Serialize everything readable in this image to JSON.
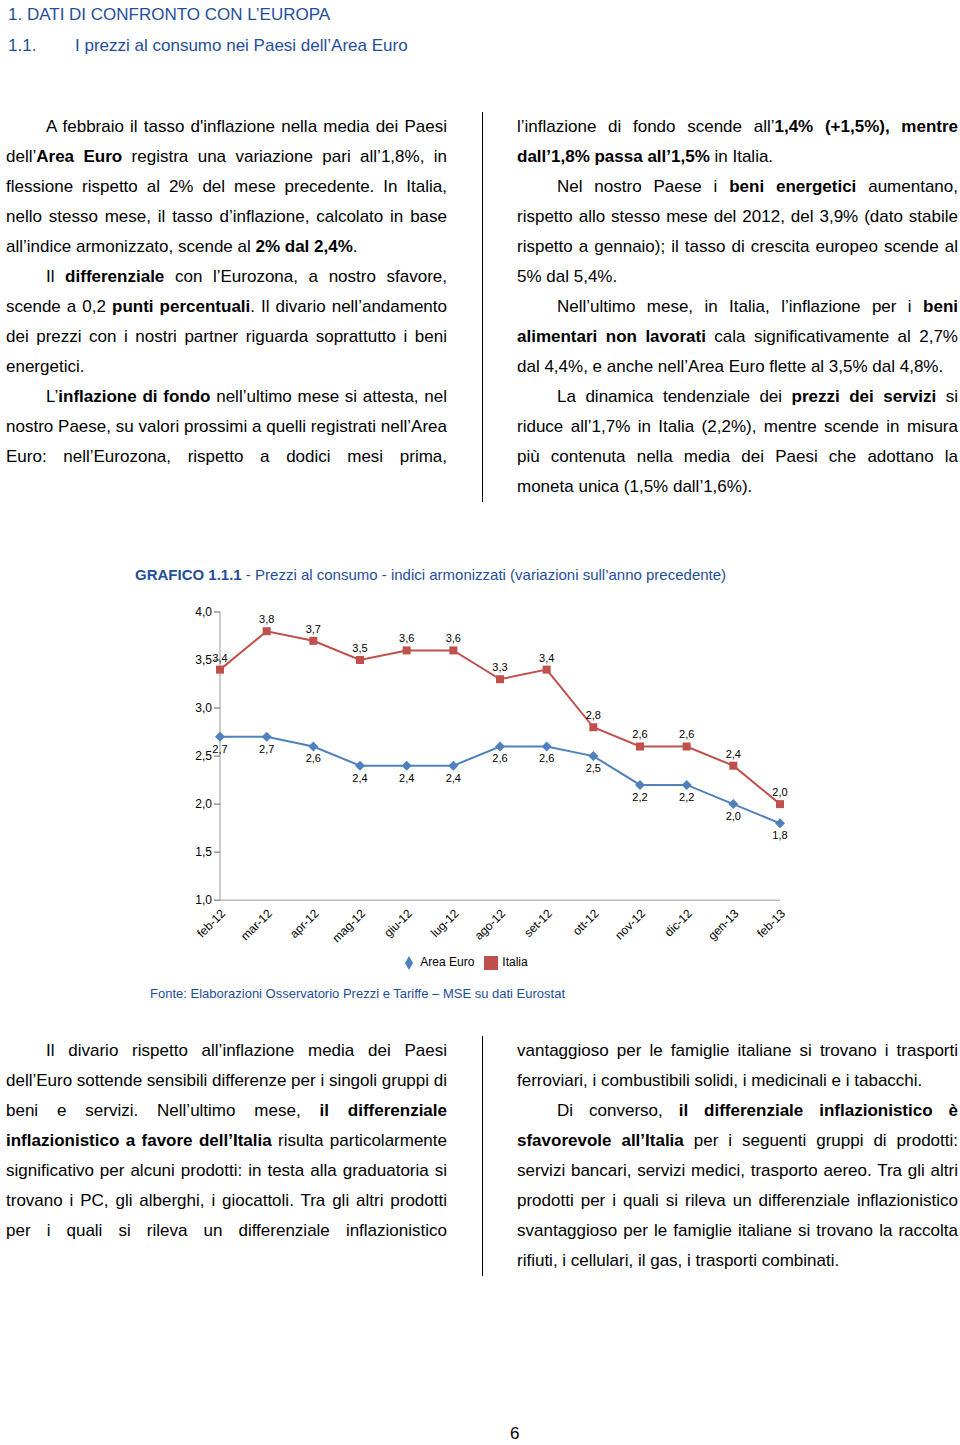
{
  "document": {
    "header": {
      "section": "1. DATI DI CONFRONTO CON L’EUROPA",
      "number": "1.1.",
      "title": "I prezzi al consumo nei Paesi dell’Area Euro"
    },
    "top_paragraphs": [
      [
        "A febbraio il tasso d'inflazione nella media dei Paesi dell’",
        {
          "bold": "Area Euro"
        },
        " registra una variazione pari all’1,8%, in flessione rispetto al 2% del mese precedente. In Italia, nello stesso mese, il tasso d’inflazione, calcolato in base all’indice armonizzato, scende al ",
        {
          "bold": "2% dal 2,4%"
        },
        "."
      ],
      [
        "Il ",
        {
          "bold": "differenziale"
        },
        " con l’Eurozona, a nostro sfavore, scende a 0,2 ",
        {
          "bold": "punti percentuali"
        },
        ". Il divario nell’andamento dei prezzi con i nostri partner riguarda soprattutto i beni energetici."
      ],
      [
        "L’",
        {
          "bold": "inflazione di fondo"
        },
        " nell’ultimo mese si attesta, nel nostro Paese, su valori prossimi a quelli registrati nell’Area Euro: nell’Eurozona, rispetto a dodici mesi prima, l’inflazione di fondo scende all’",
        {
          "bold": "1,4% (+1,5%), mentre dall’1,8% passa all’1,5%"
        },
        " in Italia."
      ],
      [
        "Nel nostro Paese i ",
        {
          "bold": "beni energetici"
        },
        " aumentano, rispetto allo stesso mese del 2012, del 3,9% (dato stabile rispetto a gennaio); il tasso di crescita europeo scende al 5% dal 5,4%."
      ],
      [
        "Nell’ultimo mese, in Italia, l’inflazione per i ",
        {
          "bold": "beni alimentari non lavorati"
        },
        " cala significativamente al 2,7% dal 4,4%, e anche nell’Area Euro flette al 3,5% dal 4,8%."
      ],
      [
        "La dinamica tendenziale dei ",
        {
          "bold": "prezzi dei servizi"
        },
        " si riduce all’1,7% in Italia (2,2%), mentre scende in misura più contenuta nella media dei Paesi che adottano la moneta unica (1,5% dall’1,6%)."
      ]
    ],
    "source": "Fonte: Elaborazioni Osservatorio Prezzi e Tariffe – MSE su dati Eurostat",
    "bottom_paragraphs": [
      [
        "Il divario rispetto all’inflazione media dei Paesi dell’Euro sottende sensibili differenze per i singoli gruppi di beni e servizi. Nell’ultimo mese, ",
        {
          "bold": "il differenziale inflazionistico a favore dell’Italia"
        },
        " risulta particolarmente significativo per alcuni prodotti: in testa alla graduatoria si trovano i PC, gli alberghi, i giocattoli. Tra gli altri prodotti per i quali si rileva un differenziale inflazionistico vantaggioso per le famiglie italiane si trovano i trasporti ferroviari, i combustibili solidi, i medicinali e i tabacchi."
      ],
      [
        "Di converso, ",
        {
          "bold": "il differenziale inflazionistico è sfavorevole all’Italia"
        },
        " per i seguenti gruppi di prodotti: servizi bancari, servizi medici, trasporto aereo. Tra gli altri prodotti per i quali si rileva un differenziale inflazionistico svantaggioso per le famiglie italiane si trovano la raccolta rifiuti, i cellulari, il gas, i trasporti combinati."
      ]
    ],
    "page_number": "6"
  },
  "chart_data": {
    "type": "line",
    "title": "GRAFICO 1.1.1 - Prezzi al consumo - indici armonizzati (variazioni sull’anno precedente)",
    "categories": [
      "feb-12",
      "mar-12",
      "apr-12",
      "mag-12",
      "giu-12",
      "lug-12",
      "ago-12",
      "set-12",
      "ott-12",
      "nov-12",
      "dic-12",
      "gen-13",
      "feb-13"
    ],
    "series": [
      {
        "name": "Area Euro",
        "color": "#4f81bd",
        "marker": "diamond",
        "values": [
          2.7,
          2.7,
          2.6,
          2.4,
          2.4,
          2.4,
          2.6,
          2.6,
          2.5,
          2.2,
          2.2,
          2.0,
          1.8
        ],
        "value_labels": [
          "2,7",
          "2,7",
          "2,6",
          "2,4",
          "2,4",
          "2,4",
          "2,6",
          "2,6",
          "2,5",
          "2,2",
          "2,2",
          "2,0",
          "1,8"
        ]
      },
      {
        "name": "Italia",
        "color": "#c0504d",
        "marker": "square",
        "values": [
          3.4,
          3.8,
          3.7,
          3.5,
          3.6,
          3.6,
          3.3,
          3.4,
          2.8,
          2.6,
          2.6,
          2.4,
          2.0
        ],
        "value_labels": [
          "3,4",
          "3,8",
          "3,7",
          "3,5",
          "3,6",
          "3,6",
          "3,3",
          "3,4",
          "2,8",
          "2,6",
          "2,6",
          "2,4",
          "2,0"
        ]
      }
    ],
    "ylim": [
      1.0,
      4.0
    ],
    "yticks": [
      {
        "value": 1.0,
        "label": "1,0"
      },
      {
        "value": 1.5,
        "label": "1,5"
      },
      {
        "value": 2.0,
        "label": "2,0"
      },
      {
        "value": 2.5,
        "label": "2,5"
      },
      {
        "value": 3.0,
        "label": "3,0"
      },
      {
        "value": 3.5,
        "label": "3,5"
      },
      {
        "value": 4.0,
        "label": "4,0"
      }
    ],
    "grid": false,
    "legend": "bottom",
    "data_labels": true
  }
}
